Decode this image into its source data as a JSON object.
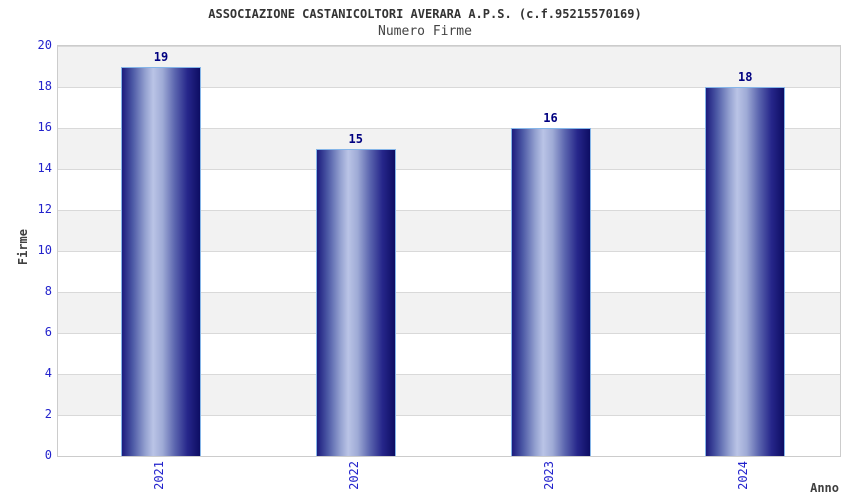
{
  "chart_data": {
    "type": "bar",
    "title": "ASSOCIAZIONE CASTANICOLTORI AVERARA A.P.S. (c.f.95215570169)",
    "subtitle": "Numero Firme",
    "xlabel": "Anno",
    "ylabel": "Firme",
    "categories": [
      "2021",
      "2022",
      "2023",
      "2024"
    ],
    "values": [
      19,
      15,
      16,
      18
    ],
    "ylim": [
      0,
      20
    ],
    "ytick_step": 2,
    "legend": "none",
    "grid": "horizontal-every-2-units",
    "plot_background": "alternating horizontal bands, gray band directly below top (18-20), white band at bottom (0-2)",
    "colors": {
      "bar_dark": "#0d0d63",
      "bar_mid": "#4d5aa6",
      "bar_highlight": "#bac4e6",
      "bar_border": "#85b5e8",
      "tick_label": "#2323cc",
      "value_label": "#000080",
      "title_text": "#333333",
      "subtitle_text": "#444444",
      "axis_title_text": "#404040",
      "band_gray": "#f2f2f2",
      "gridline": "#d9d9d9",
      "plot_border": "#cccccc"
    }
  }
}
